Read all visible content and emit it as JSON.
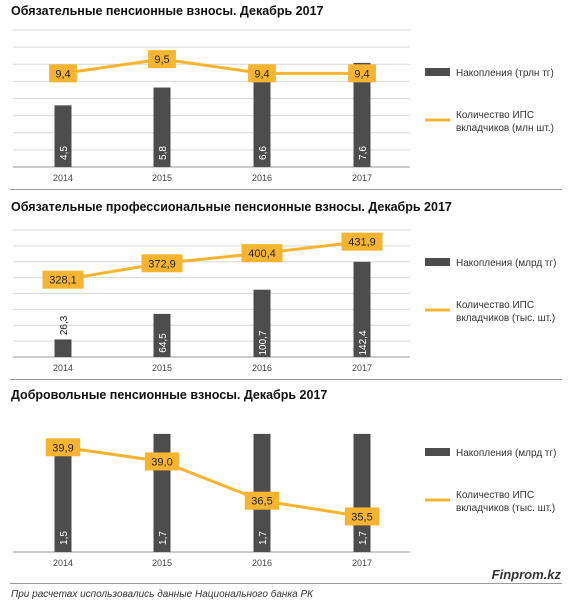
{
  "colors": {
    "bar": "#4d4d4d",
    "line": "#f6b430",
    "label_bg": "#f6b430",
    "grid": "#d9d9d9",
    "axis": "#9a9a9a"
  },
  "chart_data": [
    {
      "type": "bar+line",
      "title": "Обязательные пенсионные взносы. Декабрь 2017",
      "categories": [
        "2014",
        "2015",
        "2016",
        "2017"
      ],
      "series": [
        {
          "name": "Накопления (трлн тг)",
          "kind": "bar",
          "values": [
            4.5,
            5.8,
            6.6,
            7.6
          ],
          "labels": [
            "4,5",
            "5,8",
            "6,6",
            "7,6"
          ]
        },
        {
          "name": "Количество ИПС вкладчиков (млн шт.)",
          "kind": "line",
          "values": [
            9.4,
            9.5,
            9.4,
            9.4
          ],
          "labels": [
            "9,4",
            "9,5",
            "9,4",
            "9,4"
          ]
        }
      ],
      "legend": {
        "bar_label": "Накопления (трлн тг)",
        "line_label_1": "Количество ИПС",
        "line_label_2": "вкладчиков (млн шт.)",
        "placement": "right"
      },
      "grid": true
    },
    {
      "type": "bar+line",
      "title": "Обязательные профессиональные пенсионные взносы. Декабрь 2017",
      "categories": [
        "2014",
        "2015",
        "2016",
        "2017"
      ],
      "series": [
        {
          "name": "Накопления (млрд тг)",
          "kind": "bar",
          "values": [
            26.3,
            64.5,
            100.7,
            142.4
          ],
          "labels": [
            "26,3",
            "64,5",
            "100,7",
            "142,4"
          ]
        },
        {
          "name": "Количество ИПС вкладчиков (тыс. шт.)",
          "kind": "line",
          "values": [
            328.1,
            372.9,
            400.4,
            431.9
          ],
          "labels": [
            "328,1",
            "372,9",
            "400,4",
            "431,9"
          ]
        }
      ],
      "legend": {
        "bar_label": "Накопления (млрд тг)",
        "line_label_1": "Количество ИПС",
        "line_label_2": "вкладчиков (тыс. шт.)",
        "placement": "right"
      },
      "grid": true
    },
    {
      "type": "bar+line",
      "title": "Добровольные пенсионные взносы. Декабрь 2017",
      "categories": [
        "2014",
        "2015",
        "2016",
        "2017"
      ],
      "series": [
        {
          "name": "Накопления (млрд тг)",
          "kind": "bar",
          "values": [
            1.5,
            1.7,
            1.7,
            1.7
          ],
          "labels": [
            "1,5",
            "1,7",
            "1,7",
            "1,7"
          ]
        },
        {
          "name": "Количество ИПС вкладчиков (тыс. шт.)",
          "kind": "line",
          "values": [
            39.9,
            39.0,
            36.5,
            35.5
          ],
          "labels": [
            "39,9",
            "39,0",
            "36,5",
            "35,5"
          ]
        }
      ],
      "legend": {
        "bar_label": "Накопления (млрд тг)",
        "line_label_1": "Количество ИПС",
        "line_label_2": "вкладчиков (тыс. шт.)",
        "placement": "right"
      },
      "grid": false
    }
  ],
  "footer": {
    "note": "При расчетах использовались данные Национального банка РК",
    "brand": "Finprom.kz"
  }
}
